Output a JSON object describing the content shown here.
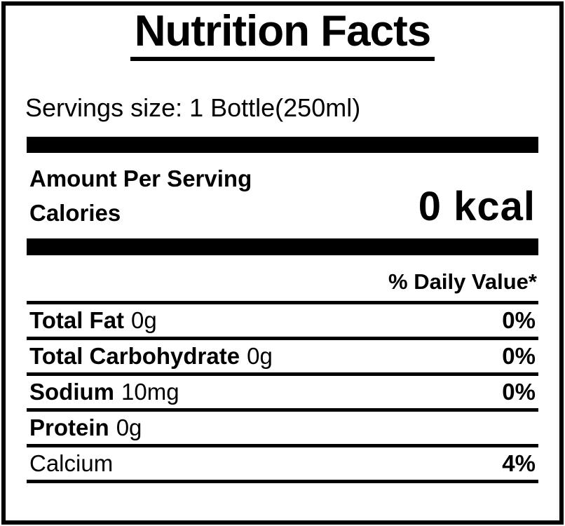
{
  "colors": {
    "text": "#000000",
    "background": "#ffffff"
  },
  "label": {
    "title": "Nutrition Facts",
    "serving_size": "Servings size: 1 Bottle(250ml)",
    "amount_per_serving": "Amount Per Serving",
    "calories_label": "Calories",
    "calories_value": "0 kcal",
    "daily_value_header": "% Daily Value*",
    "rows": [
      {
        "name": "Total Fat",
        "amount": "0g",
        "daily_value": "0%"
      },
      {
        "name": "Total Carbohydrate",
        "amount": "0g",
        "daily_value": "0%"
      },
      {
        "name": "Sodium",
        "amount": "10mg",
        "daily_value": "0%"
      },
      {
        "name": "Protein",
        "amount": "0g",
        "daily_value": ""
      },
      {
        "name": "Calcium",
        "amount": "",
        "daily_value": "4%"
      }
    ]
  }
}
